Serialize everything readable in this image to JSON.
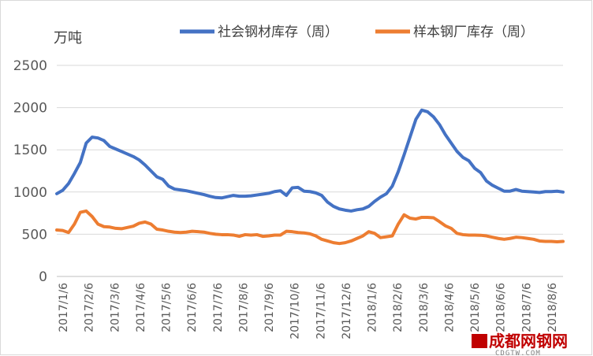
{
  "chart_data": {
    "type": "line",
    "unit_label": "万吨",
    "ylim": [
      0,
      2500
    ],
    "yticks": [
      0,
      500,
      1000,
      1500,
      2000,
      2500
    ],
    "grid": "horizontal",
    "legend_position": "top",
    "x_labels": [
      "2017/1/6",
      "2017/2/6",
      "2017/3/6",
      "2017/4/6",
      "2017/5/6",
      "2017/6/6",
      "2017/7/6",
      "2017/8/6",
      "2017/9/6",
      "2017/10/6",
      "2017/11/6",
      "2017/12/6",
      "2018/1/6",
      "2018/2/6",
      "2018/3/6",
      "2018/4/6",
      "2018/5/6",
      "2018/6/6",
      "2018/7/6",
      "2018/8/6"
    ],
    "series": [
      {
        "name": "社会钢材库存（周）",
        "color": "#4472c4",
        "values": [
          980,
          1020,
          1100,
          1220,
          1350,
          1580,
          1650,
          1640,
          1610,
          1540,
          1510,
          1480,
          1450,
          1420,
          1380,
          1320,
          1250,
          1180,
          1150,
          1070,
          1035,
          1025,
          1015,
          1000,
          985,
          970,
          950,
          935,
          930,
          945,
          960,
          950,
          950,
          955,
          965,
          975,
          985,
          1005,
          1015,
          960,
          1050,
          1055,
          1010,
          1005,
          990,
          960,
          880,
          830,
          800,
          785,
          775,
          790,
          800,
          830,
          890,
          940,
          980,
          1070,
          1240,
          1440,
          1650,
          1860,
          1970,
          1950,
          1890,
          1800,
          1680,
          1580,
          1480,
          1410,
          1370,
          1280,
          1230,
          1130,
          1080,
          1045,
          1010,
          1010,
          1030,
          1010,
          1005,
          1000,
          995,
          1005,
          1005,
          1010,
          1000
        ]
      },
      {
        "name": "样本钢厂库存（周）",
        "color": "#ed7d31",
        "values": [
          550,
          545,
          520,
          620,
          760,
          775,
          710,
          620,
          590,
          585,
          570,
          565,
          580,
          595,
          630,
          645,
          620,
          560,
          550,
          535,
          525,
          520,
          525,
          535,
          530,
          525,
          510,
          500,
          495,
          495,
          490,
          475,
          495,
          490,
          495,
          475,
          480,
          490,
          490,
          535,
          530,
          520,
          515,
          505,
          480,
          440,
          420,
          400,
          390,
          400,
          420,
          450,
          480,
          530,
          510,
          460,
          470,
          480,
          620,
          730,
          690,
          680,
          700,
          700,
          695,
          650,
          600,
          570,
          510,
          495,
          490,
          490,
          488,
          480,
          465,
          450,
          440,
          450,
          465,
          460,
          450,
          440,
          420,
          415,
          415,
          410,
          415
        ]
      }
    ]
  },
  "watermark": {
    "text": "成都网钢网",
    "subtext": "CDGTW.COM"
  }
}
